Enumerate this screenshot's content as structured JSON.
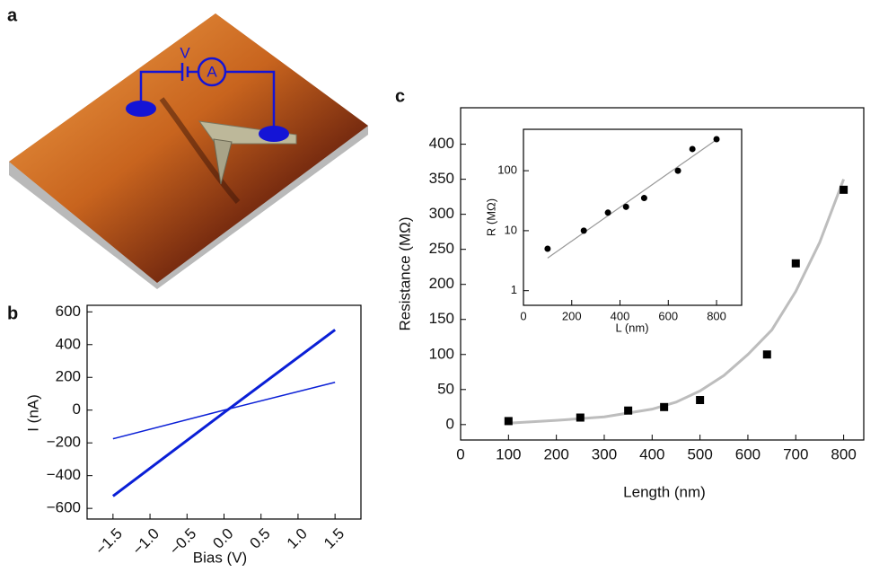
{
  "panel_labels": [
    "a",
    "b",
    "c"
  ],
  "diagram": {
    "voltage_label": "V",
    "ammeter_label": "A"
  },
  "chart_data": [
    {
      "type": "line",
      "x_label": "Bias (V)",
      "y_label": "I (nA)",
      "x": [
        -1.5,
        0,
        1.5
      ],
      "series": [
        {
          "color": "#0a1fd6",
          "values": [
            -525,
            -15,
            490
          ]
        },
        {
          "color": "#0a1fd6",
          "values": [
            -175,
            0,
            170
          ]
        }
      ],
      "xlim": [
        -1.85,
        1.85
      ],
      "xticks": [
        {
          "value": -1.5,
          "label": "−1.5"
        },
        {
          "value": -1.0,
          "label": "−1.0"
        },
        {
          "value": -0.5,
          "label": "−0.5"
        },
        {
          "value": 0,
          "label": "0.0"
        },
        {
          "value": 0.5,
          "label": "0.5"
        },
        {
          "value": 1.0,
          "label": "1.0"
        },
        {
          "value": 1.5,
          "label": "1.5"
        }
      ],
      "ylim": [
        -665,
        640
      ],
      "yticks": [
        {
          "value": -600,
          "label": "−600"
        },
        {
          "value": -400,
          "label": "−400"
        },
        {
          "value": -200,
          "label": "−200"
        },
        0,
        200,
        400,
        600
      ]
    },
    {
      "type": "scatter",
      "x_label": "Length (nm)",
      "y_label": "Resistance (MΩ)",
      "x": [
        100,
        250,
        350,
        425,
        500,
        640,
        700,
        800
      ],
      "values": [
        5,
        10,
        20,
        25,
        35,
        100,
        230,
        335
      ],
      "color": "#000000",
      "marker": "square",
      "fit": {
        "x": [
          100,
          200,
          300,
          400,
          450,
          500,
          550,
          600,
          650,
          700,
          750,
          800
        ],
        "values": [
          2,
          6,
          11,
          22,
          32,
          48,
          70,
          100,
          135,
          190,
          260,
          350
        ],
        "color": "#bdbdbd"
      },
      "xlim": [
        0,
        842
      ],
      "xticks": [
        0,
        100,
        200,
        300,
        400,
        500,
        600,
        700,
        800
      ],
      "ylim": [
        -22,
        452
      ],
      "yticks": [
        0,
        50,
        100,
        150,
        200,
        250,
        300,
        350,
        400
      ]
    },
    {
      "type": "scatter",
      "x_label": "L (nm)",
      "y_label": "R (MΩ)",
      "log_y": true,
      "x": [
        100,
        250,
        350,
        425,
        500,
        640,
        700,
        800
      ],
      "values": [
        5,
        10,
        20,
        25,
        35,
        100,
        230,
        335
      ],
      "color": "#000000",
      "marker": "circle",
      "fit": {
        "x": [
          100,
          800
        ],
        "values": [
          3.5,
          330
        ],
        "color": "#999999"
      },
      "xlim": [
        0,
        904
      ],
      "xticks": [
        0,
        200,
        400,
        600,
        800
      ],
      "ylim": [
        0.57,
        490
      ],
      "yticks": [
        1,
        10,
        100
      ]
    }
  ]
}
